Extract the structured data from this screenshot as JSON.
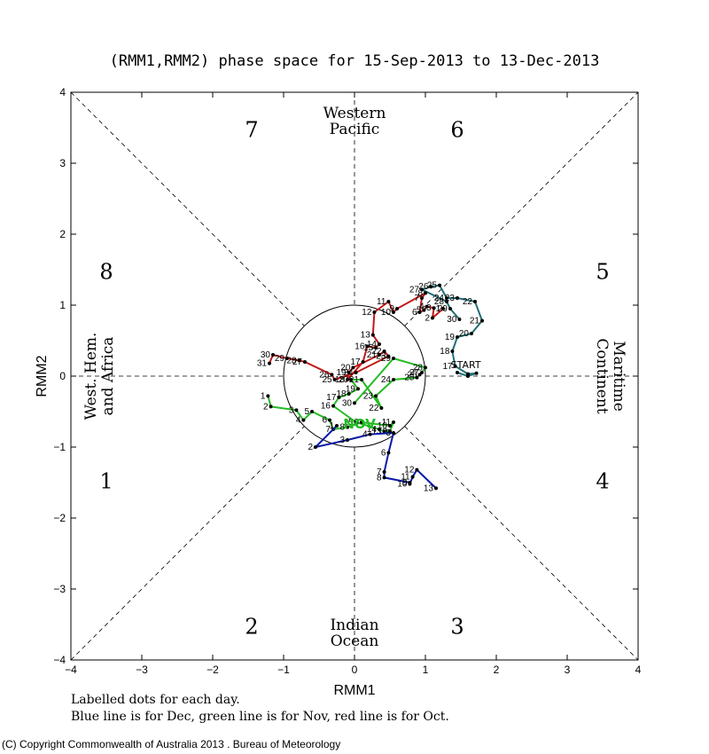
{
  "chart_data": {
    "type": "scatter",
    "title": "(RMM1,RMM2) phase space for 15-Sep-2013 to 13-Dec-2013",
    "xlabel": "RMM1",
    "ylabel": "RMM2",
    "xlim": [
      -4,
      4
    ],
    "ylim": [
      -4,
      4
    ],
    "x_ticks": [
      "−4",
      "−3",
      "−2",
      "−1",
      "0",
      "1",
      "2",
      "3",
      "4"
    ],
    "y_ticks": [
      "−4",
      "−3",
      "−2",
      "−1",
      "0",
      "1",
      "2",
      "3",
      "4"
    ],
    "grid": false,
    "unit_circle_radius": 1,
    "phase_numbers": [
      {
        "text": "1",
        "x": -3.5,
        "y": -1.5
      },
      {
        "text": "2",
        "x": -1.45,
        "y": -3.55
      },
      {
        "text": "3",
        "x": 1.45,
        "y": -3.55
      },
      {
        "text": "4",
        "x": 3.5,
        "y": -1.5
      },
      {
        "text": "5",
        "x": 3.5,
        "y": 1.45
      },
      {
        "text": "6",
        "x": 1.45,
        "y": 3.45
      },
      {
        "text": "7",
        "x": -1.45,
        "y": 3.45
      },
      {
        "text": "8",
        "x": -3.5,
        "y": 1.45
      }
    ],
    "region_labels": {
      "top": [
        "Western",
        "Pacific"
      ],
      "bottom": [
        "Indian",
        "Ocean"
      ],
      "left": [
        "West. Hem.",
        "and Africa"
      ],
      "right": [
        "Maritime",
        "Continent"
      ]
    },
    "annotations": [
      {
        "text": "START",
        "x": 1.57,
        "y": 0.11,
        "color": "#000000"
      },
      {
        "text": "NOV",
        "x": 0.07,
        "y": -0.74,
        "color": "#22bb22"
      }
    ],
    "series": [
      {
        "name": "Sep",
        "color": "#1f6f74",
        "points": [
          {
            "label": "",
            "x": 1.45,
            "y": 0.05
          },
          {
            "label": "",
            "x": 1.6,
            "y": 0.0
          },
          {
            "label": "",
            "x": 1.72,
            "y": 0.04
          },
          {
            "label": "",
            "x": 1.6,
            "y": 0.03
          },
          {
            "label": "17",
            "x": 1.42,
            "y": 0.14
          },
          {
            "label": "18",
            "x": 1.38,
            "y": 0.35
          },
          {
            "label": "19",
            "x": 1.45,
            "y": 0.55
          },
          {
            "label": "20",
            "x": 1.65,
            "y": 0.6
          },
          {
            "label": "21",
            "x": 1.8,
            "y": 0.78
          },
          {
            "label": "22",
            "x": 1.7,
            "y": 1.05
          },
          {
            "label": "23",
            "x": 1.45,
            "y": 1.1
          },
          {
            "label": "24",
            "x": 1.3,
            "y": 1.1
          },
          {
            "label": "25",
            "x": 1.2,
            "y": 1.28
          },
          {
            "label": "26",
            "x": 1.08,
            "y": 1.26
          },
          {
            "label": "27",
            "x": 0.95,
            "y": 1.22
          },
          {
            "label": "28",
            "x": 1.3,
            "y": 1.05
          },
          {
            "label": "29",
            "x": 1.35,
            "y": 0.95
          },
          {
            "label": "30",
            "x": 1.48,
            "y": 0.8
          }
        ]
      },
      {
        "name": "Oct",
        "color": "#c01818",
        "points": [
          {
            "label": "1",
            "x": 1.25,
            "y": 0.95
          },
          {
            "label": "2",
            "x": 1.1,
            "y": 0.82
          },
          {
            "label": "3",
            "x": 1.12,
            "y": 0.96
          },
          {
            "label": "4",
            "x": 1.02,
            "y": 0.98
          },
          {
            "label": "5",
            "x": 0.98,
            "y": 0.93
          },
          {
            "label": "6",
            "x": 0.92,
            "y": 0.9
          },
          {
            "label": "7",
            "x": 0.95,
            "y": 1.1
          },
          {
            "label": "8",
            "x": 1.0,
            "y": 1.17
          },
          {
            "label": "9",
            "x": 0.6,
            "y": 0.95
          },
          {
            "label": "10",
            "x": 0.55,
            "y": 0.9
          },
          {
            "label": "11",
            "x": 0.48,
            "y": 1.05
          },
          {
            "label": "12",
            "x": 0.28,
            "y": 0.9
          },
          {
            "label": "13",
            "x": 0.26,
            "y": 0.58
          },
          {
            "label": "14",
            "x": 0.35,
            "y": 0.45
          },
          {
            "label": "15",
            "x": 0.3,
            "y": 0.4
          },
          {
            "label": "16",
            "x": 0.18,
            "y": 0.42
          },
          {
            "label": "17",
            "x": 0.12,
            "y": 0.2
          },
          {
            "label": "18",
            "x": -0.1,
            "y": -0.05
          },
          {
            "label": "19",
            "x": -0.08,
            "y": 0.05
          },
          {
            "label": "20",
            "x": -0.02,
            "y": 0.12
          },
          {
            "label": "21",
            "x": 0.35,
            "y": 0.3
          },
          {
            "label": "22",
            "x": 0.42,
            "y": 0.35
          },
          {
            "label": "23",
            "x": 0.48,
            "y": 0.28
          },
          {
            "label": "24",
            "x": 0.02,
            "y": 0.05
          },
          {
            "label": "25",
            "x": -0.28,
            "y": -0.05
          },
          {
            "label": "26",
            "x": -0.32,
            "y": 0.02
          },
          {
            "label": "27",
            "x": -0.7,
            "y": 0.2
          },
          {
            "label": "28",
            "x": -0.78,
            "y": 0.22
          },
          {
            "label": "29",
            "x": -0.95,
            "y": 0.25
          },
          {
            "label": "30",
            "x": -1.15,
            "y": 0.3
          },
          {
            "label": "31",
            "x": -1.2,
            "y": 0.18
          }
        ]
      },
      {
        "name": "Nov",
        "color": "#22bb22",
        "points": [
          {
            "label": "1",
            "x": -1.22,
            "y": -0.28
          },
          {
            "label": "2",
            "x": -1.18,
            "y": -0.43
          },
          {
            "label": "3",
            "x": -0.82,
            "y": -0.48
          },
          {
            "label": "4",
            "x": -0.72,
            "y": -0.62
          },
          {
            "label": "5",
            "x": -0.6,
            "y": -0.5
          },
          {
            "label": "6",
            "x": -0.35,
            "y": -0.62
          },
          {
            "label": "7",
            "x": -0.3,
            "y": -0.75
          },
          {
            "label": "8",
            "x": -0.1,
            "y": -0.72
          },
          {
            "label": "9",
            "x": 0.1,
            "y": -0.65
          },
          {
            "label": "10",
            "x": 0.5,
            "y": -0.7
          },
          {
            "label": "11",
            "x": 0.55,
            "y": -0.65
          },
          {
            "label": "12",
            "x": 0.5,
            "y": -0.78
          },
          {
            "label": "13",
            "x": 0.42,
            "y": -0.78
          },
          {
            "label": "14",
            "x": 0.35,
            "y": -0.75
          },
          {
            "label": "15",
            "x": 0.02,
            "y": -0.65
          },
          {
            "label": "16",
            "x": -0.3,
            "y": -0.42
          },
          {
            "label": "17",
            "x": -0.22,
            "y": -0.3
          },
          {
            "label": "18",
            "x": -0.08,
            "y": -0.25
          },
          {
            "label": "19",
            "x": 0.05,
            "y": -0.18
          },
          {
            "label": "20",
            "x": -0.05,
            "y": -0.05
          },
          {
            "label": "21",
            "x": 0.1,
            "y": -0.05
          },
          {
            "label": "22",
            "x": 0.38,
            "y": -0.45
          },
          {
            "label": "23",
            "x": 0.3,
            "y": -0.28
          },
          {
            "label": "24",
            "x": 0.55,
            "y": -0.05
          },
          {
            "label": "25",
            "x": 0.88,
            "y": -0.02
          },
          {
            "label": "26",
            "x": 0.92,
            "y": 0.02
          },
          {
            "label": "27",
            "x": 0.95,
            "y": 0.05
          },
          {
            "label": "28",
            "x": 1.0,
            "y": 0.12
          },
          {
            "label": "29",
            "x": 0.55,
            "y": 0.25
          },
          {
            "label": "30",
            "x": 0.0,
            "y": -0.38
          }
        ]
      },
      {
        "name": "Dec",
        "color": "#0a1aa8",
        "points": [
          {
            "label": "1",
            "x": -0.25,
            "y": -0.7
          },
          {
            "label": "2",
            "x": -0.55,
            "y": -1.0
          },
          {
            "label": "3",
            "x": -0.1,
            "y": -0.9
          },
          {
            "label": "4",
            "x": 0.22,
            "y": -0.82
          },
          {
            "label": "5",
            "x": 0.55,
            "y": -0.8
          },
          {
            "label": "6",
            "x": 0.48,
            "y": -1.08
          },
          {
            "label": "7",
            "x": 0.42,
            "y": -1.35
          },
          {
            "label": "8",
            "x": 0.42,
            "y": -1.43
          },
          {
            "label": "9",
            "x": 0.78,
            "y": -1.5
          },
          {
            "label": "10",
            "x": 0.78,
            "y": -1.52
          },
          {
            "label": "11",
            "x": 0.82,
            "y": -1.42
          },
          {
            "label": "12",
            "x": 0.88,
            "y": -1.32
          },
          {
            "label": "13",
            "x": 1.15,
            "y": -1.58
          }
        ]
      }
    ]
  },
  "footer": {
    "line1": "Labelled dots for each day.",
    "line2": "Blue line is for Dec, green line is for Nov, red line is for Oct."
  },
  "copyright": "(C) Copyright Commonwealth of Australia 2013 . Bureau of Meteorology"
}
